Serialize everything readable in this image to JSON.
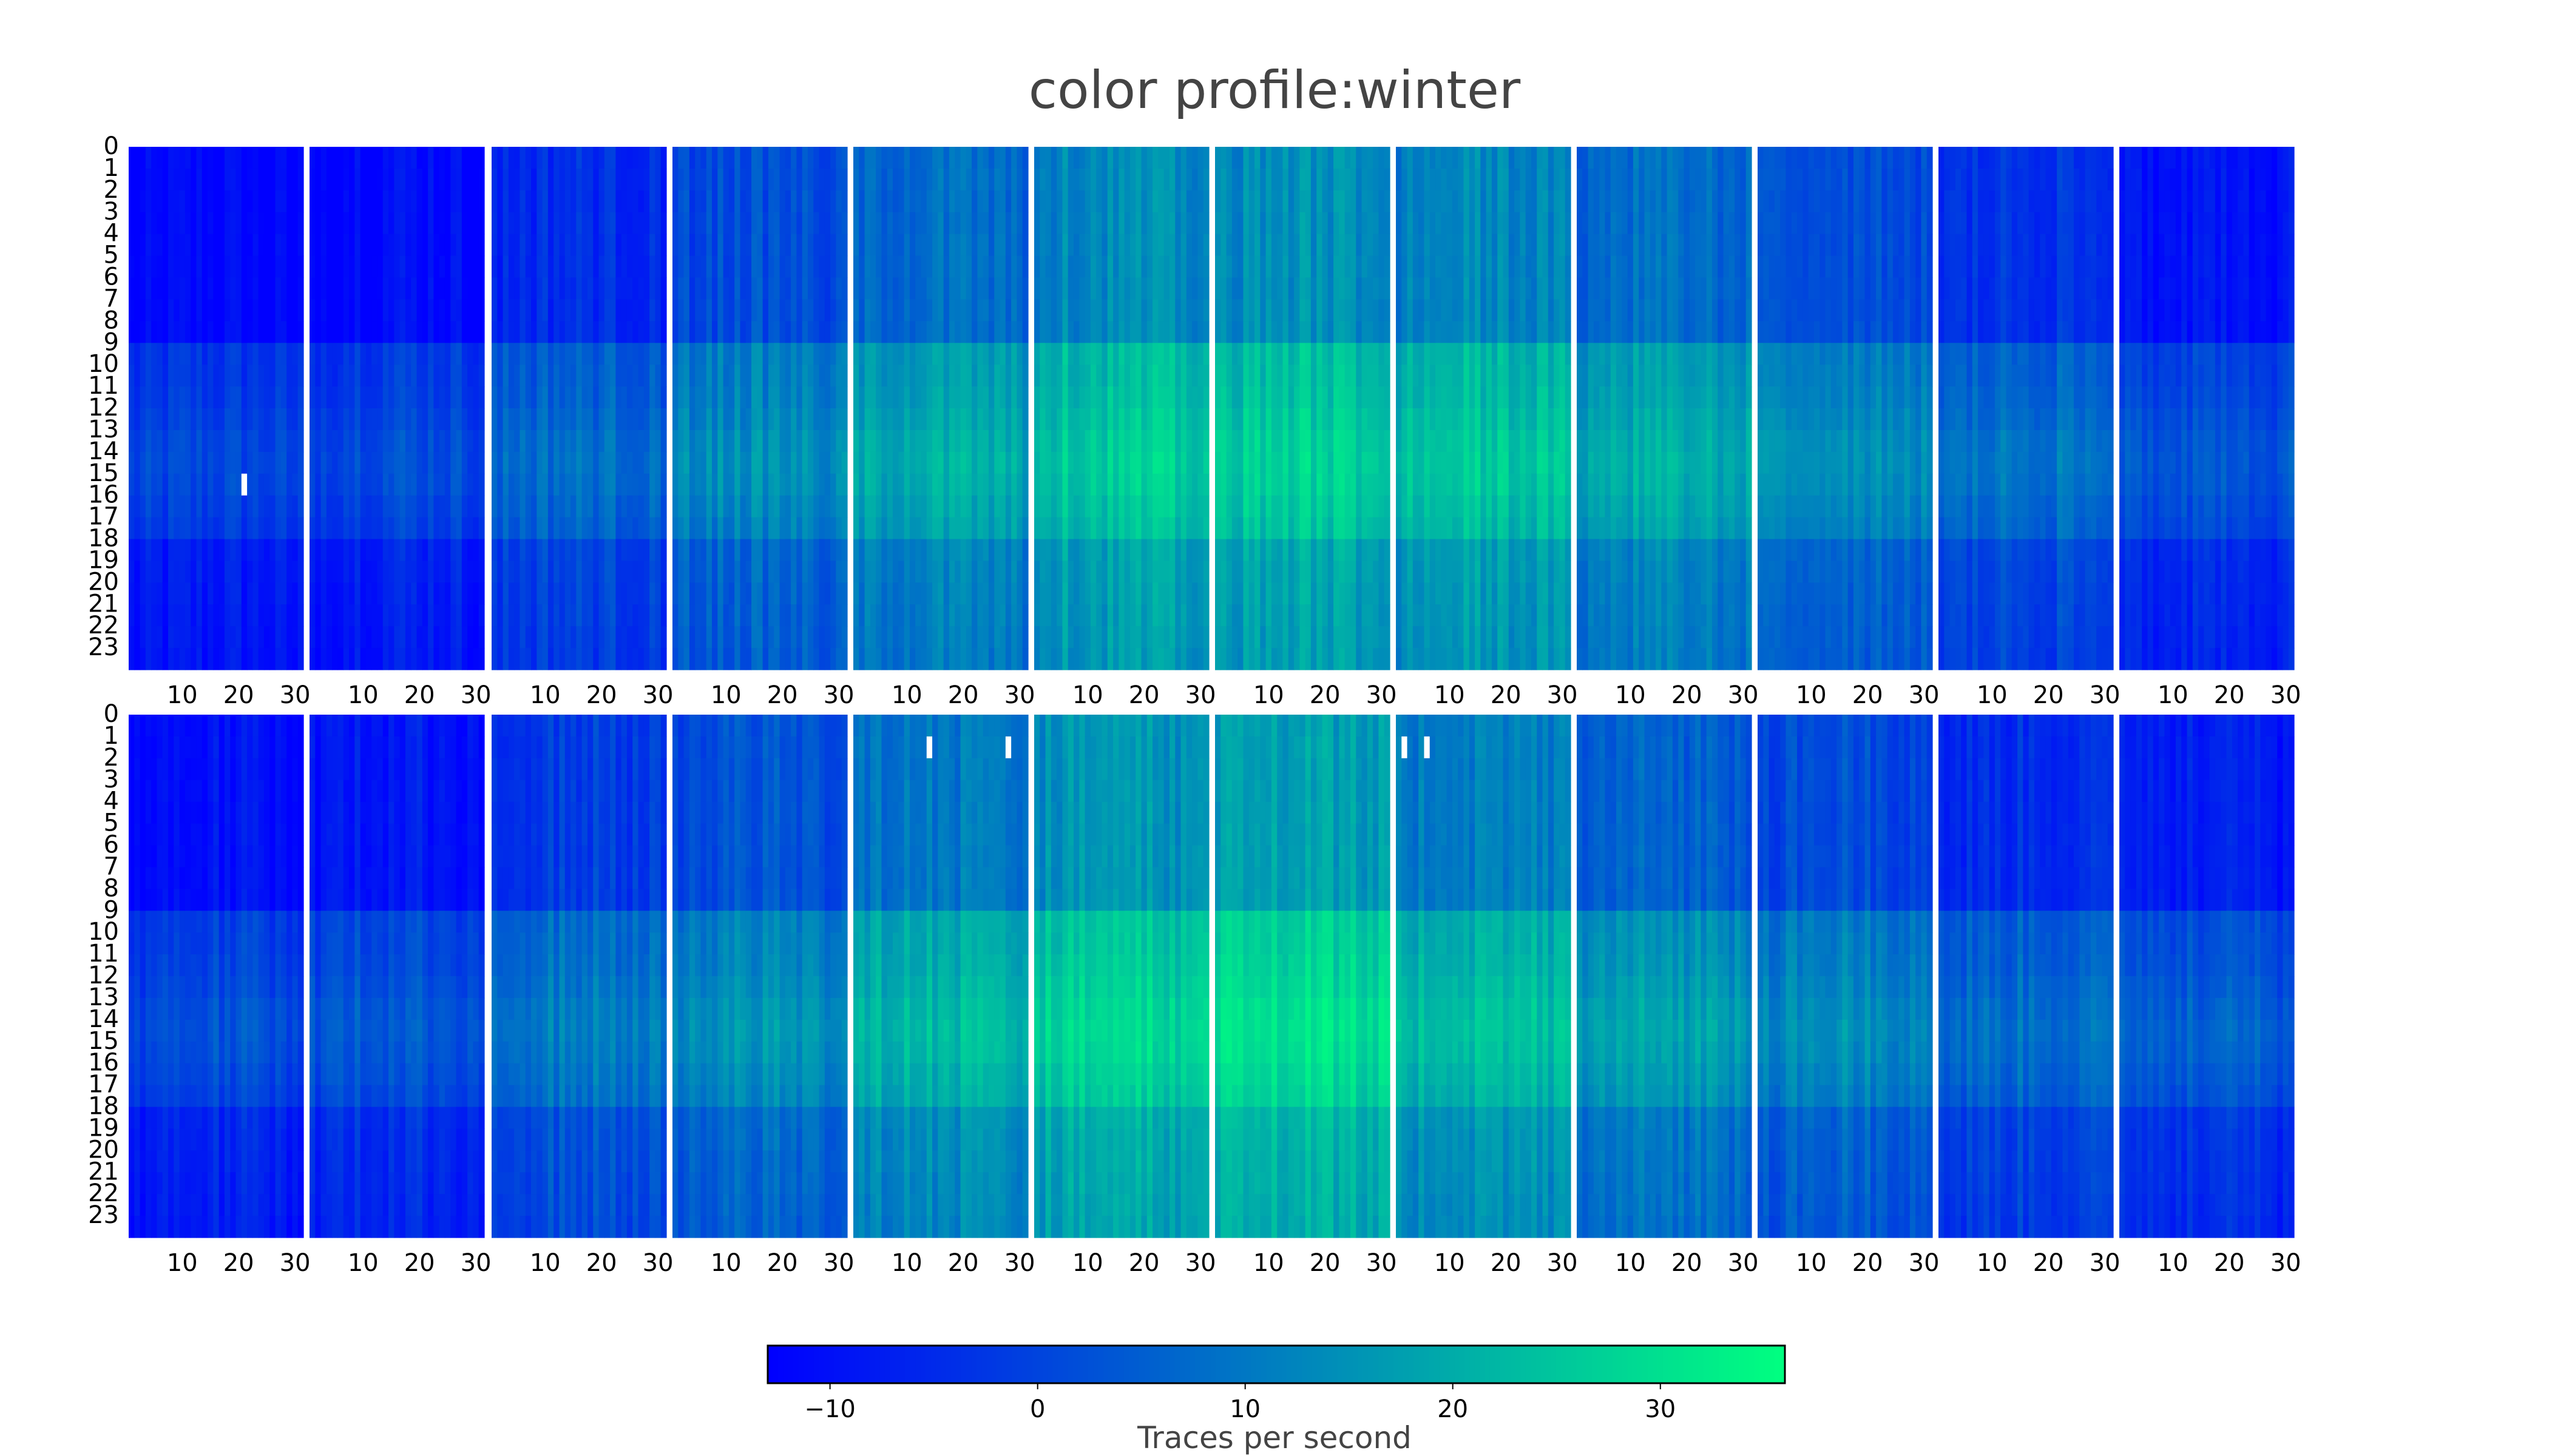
{
  "chart_data": {
    "type": "heatmap",
    "title": "color profile:winter",
    "colormap": "winter",
    "colormap_stops": [
      "#0000ff",
      "#00ff80"
    ],
    "rows": 2,
    "months_per_row": 12,
    "day_ticks": [
      "10",
      "20",
      "30"
    ],
    "hour_labels": [
      "0",
      "1",
      "2",
      "3",
      "4",
      "5",
      "6",
      "7",
      "8",
      "9",
      "10",
      "11",
      "12",
      "13",
      "14",
      "15",
      "16",
      "17",
      "18",
      "19",
      "20",
      "21",
      "22",
      "23"
    ],
    "days_per_panel": 31,
    "value_unit": "Traces per second",
    "monthly_level_row1": [
      -8,
      -6,
      0,
      6,
      12,
      18,
      19,
      17,
      12,
      7,
      1,
      -4
    ],
    "monthly_level_row2": [
      -6,
      -4,
      3,
      7,
      14,
      20,
      22,
      16,
      10,
      6,
      0,
      -3
    ],
    "missing_cells": [
      {
        "row": 1,
        "month": 1,
        "day": 21,
        "hour": 15
      },
      {
        "row": 2,
        "month": 5,
        "day": 14,
        "hour": 1
      },
      {
        "row": 2,
        "month": 5,
        "day": 28,
        "hour": 1
      },
      {
        "row": 2,
        "month": 8,
        "day": 2,
        "hour": 1
      },
      {
        "row": 2,
        "month": 8,
        "day": 6,
        "hour": 1
      }
    ],
    "colorbar": {
      "range": [
        -13,
        36
      ],
      "ticks": [
        -10,
        0,
        10,
        20,
        30
      ],
      "tick_labels": [
        "−10",
        "0",
        "10",
        "20",
        "30"
      ],
      "label": "Traces per second"
    }
  }
}
